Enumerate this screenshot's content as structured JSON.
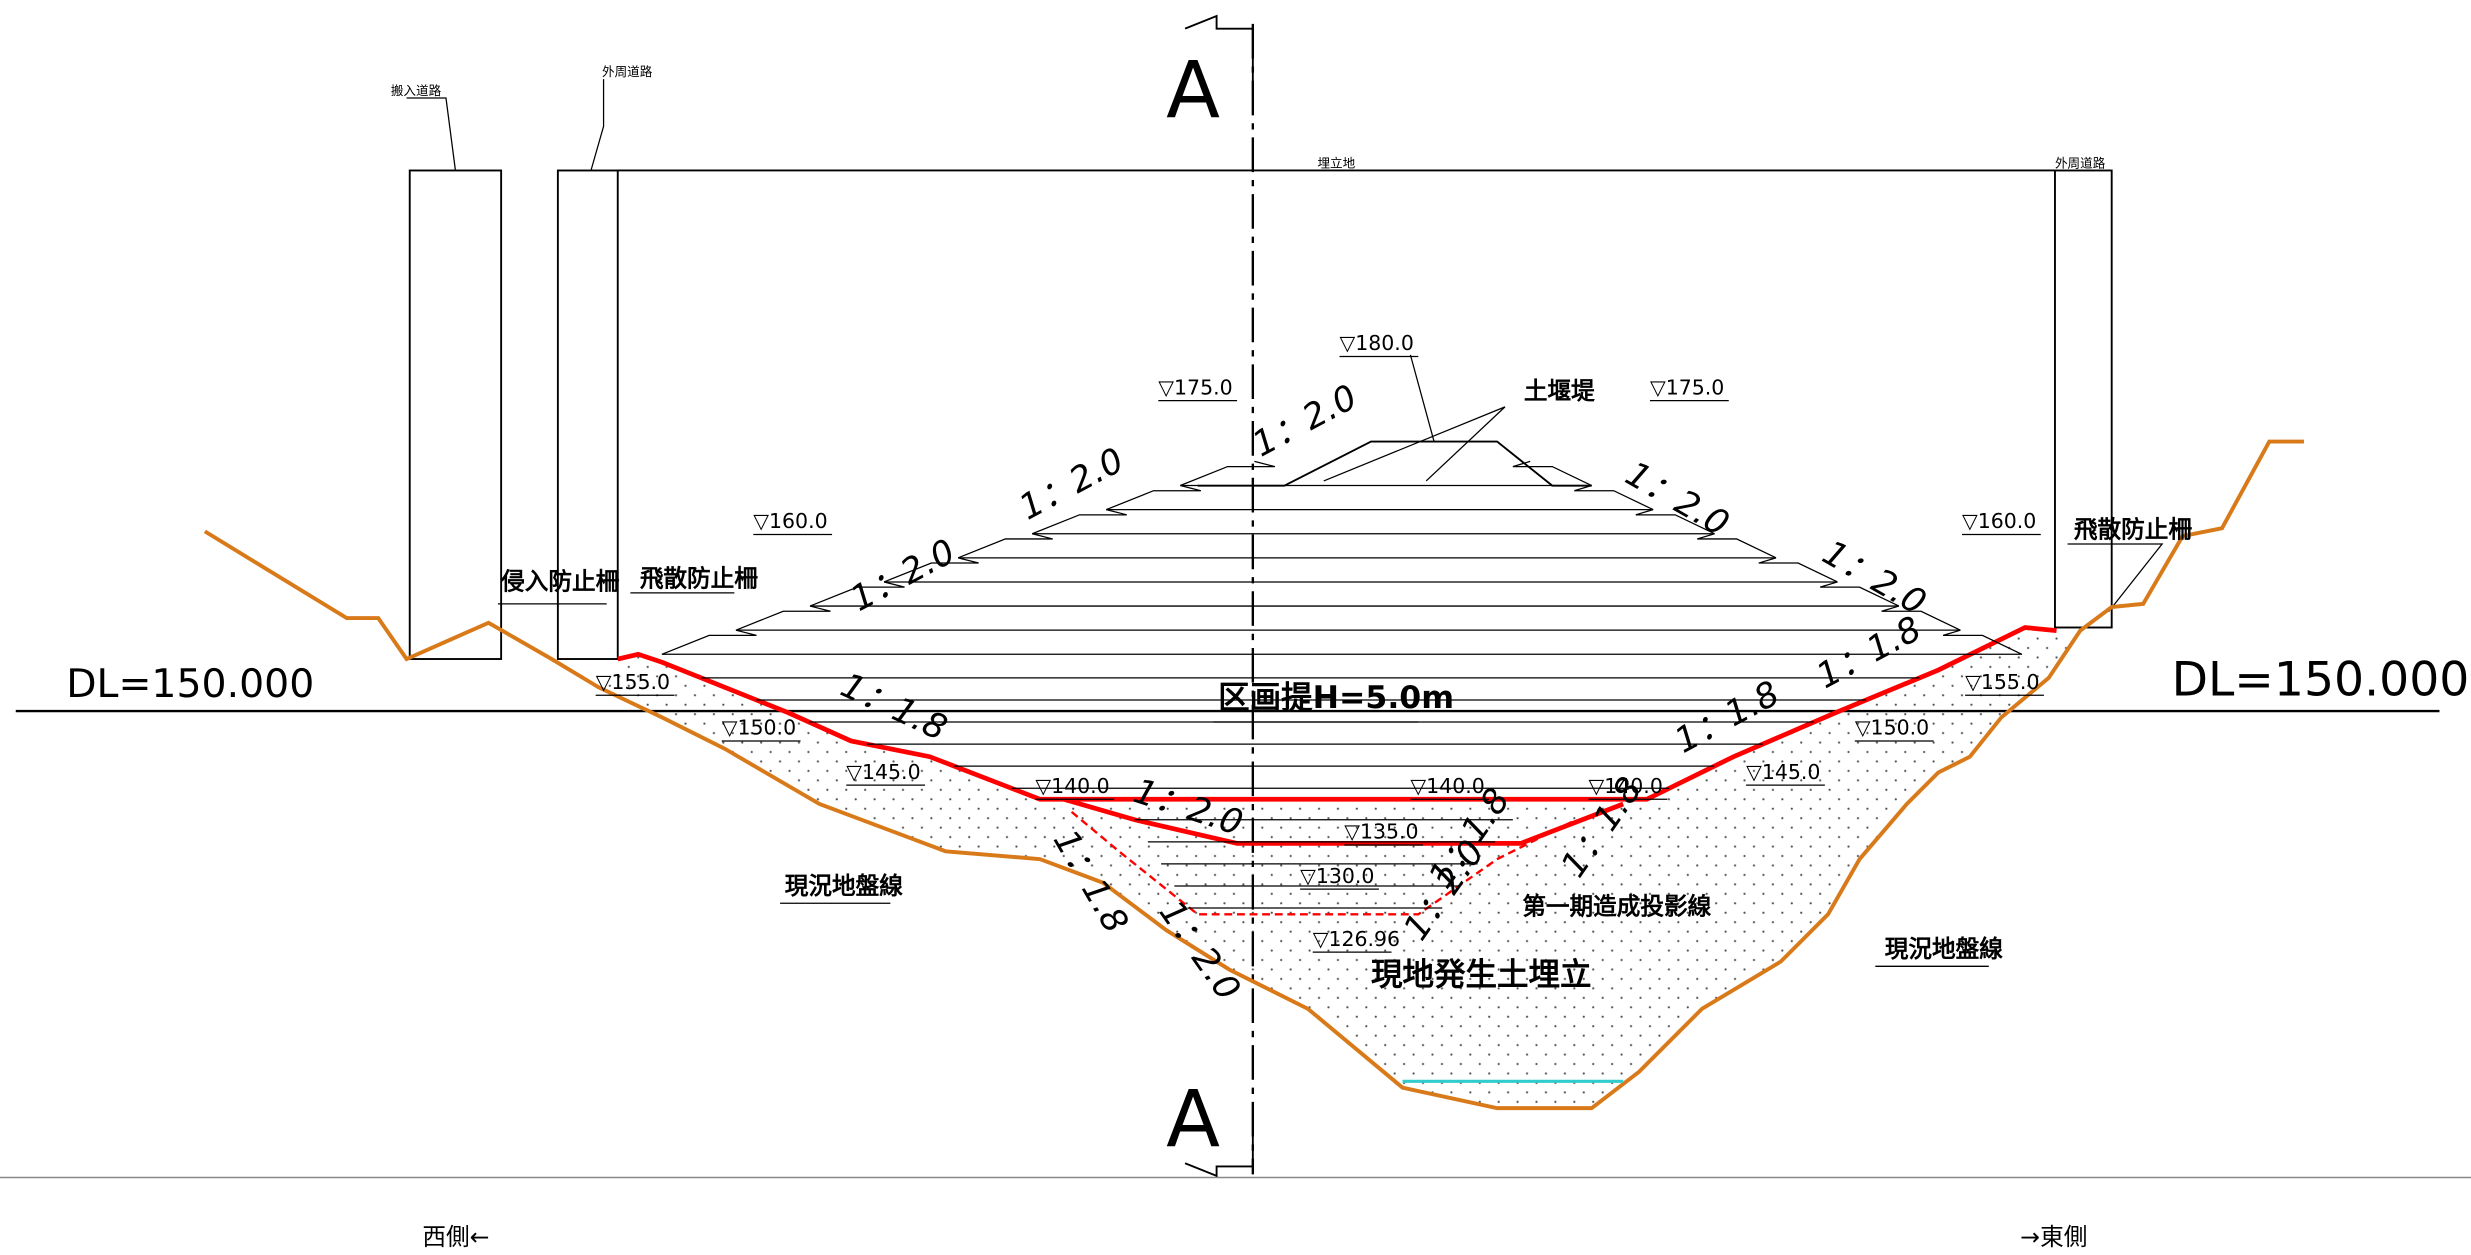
{
  "section_marker": [
    "A",
    "A"
  ],
  "roads": [
    "搬入道路",
    "外周道路",
    "埋立地",
    "外周道路"
  ],
  "fences": [
    "侵入防止柵",
    "飛散防止柵",
    "飛散防止柵"
  ],
  "datum": [
    "DL=150.000",
    "DL=150.000"
  ],
  "elevations": [
    "▽180.0",
    "▽175.0",
    "▽175.0",
    "▽160.0",
    "▽160.0",
    "▽155.0",
    "▽155.0",
    "▽150.0",
    "▽150.0",
    "▽145.0",
    "▽145.0",
    "▽140.0",
    "▽140.0",
    "▽140.0",
    "▽135.0",
    "▽130.0",
    "▽126.96"
  ],
  "slopes": [
    "1：2.0",
    "1：2.0",
    "1：2.0",
    "1：2.0",
    "1：2.0",
    "1：1.8",
    "1：1.8",
    "1：1.8",
    "1：2.0",
    "1：1.8",
    "1：1.8",
    "1：1.8",
    "1：2.0",
    "1：2.0"
  ],
  "annotations": [
    "土堰堤",
    "区画提H=5.0m",
    "第一期造成投影線",
    "現地発生土埋立",
    "現況地盤線",
    "現況地盤線"
  ],
  "directions": [
    "西側←",
    "→東側"
  ]
}
